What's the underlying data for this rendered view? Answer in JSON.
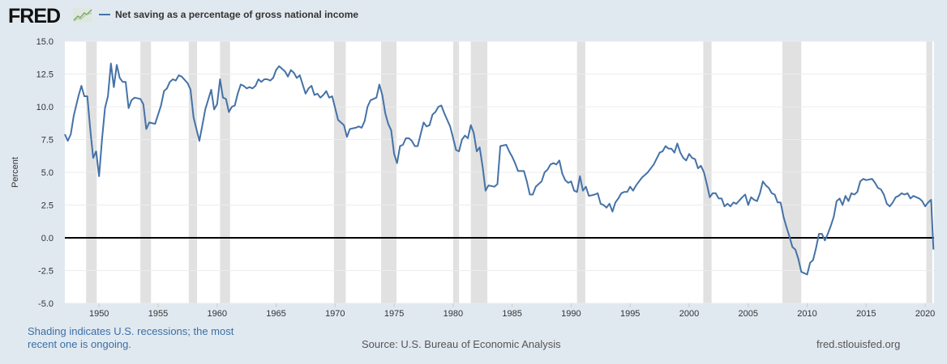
{
  "header": {
    "logo": "FRED",
    "legend_label": "Net saving as a percentage of gross national income"
  },
  "footer": {
    "note": "Shading indicates U.S. recessions; the most recent one is ongoing.",
    "source": "Source: U.S. Bureau of Economic Analysis",
    "site": "fred.stlouisfed.org"
  },
  "chart_data": {
    "type": "line",
    "title": "Net saving as a percentage of gross national income",
    "xlabel": "",
    "ylabel": "Percent",
    "ylim": [
      -5,
      15
    ],
    "xlim": [
      1947.1,
      2020.75
    ],
    "yticks": [
      "15.0",
      "12.5",
      "10.0",
      "7.5",
      "5.0",
      "2.5",
      "0.0",
      "-2.5",
      "-5.0"
    ],
    "ytick_values": [
      15,
      12.5,
      10,
      7.5,
      5,
      2.5,
      0,
      -2.5,
      -5
    ],
    "xticks": [
      "1950",
      "1955",
      "1960",
      "1965",
      "1970",
      "1975",
      "1980",
      "1985",
      "1990",
      "1995",
      "2000",
      "2005",
      "2010",
      "2015",
      "2020"
    ],
    "grid": true,
    "line_color": "#4572a7",
    "recessions": [
      [
        1948.9,
        1949.8
      ],
      [
        1953.5,
        1954.4
      ],
      [
        1957.6,
        1958.3
      ],
      [
        1960.25,
        1961.1
      ],
      [
        1969.9,
        1970.9
      ],
      [
        1973.9,
        1975.2
      ],
      [
        1980.0,
        1980.5
      ],
      [
        1981.5,
        1982.9
      ],
      [
        1990.5,
        1991.2
      ],
      [
        2001.2,
        2001.9
      ],
      [
        2007.9,
        2009.5
      ],
      [
        2020.1,
        2020.6
      ]
    ],
    "series": [
      {
        "name": "Net saving as a percentage of gross national income",
        "points": [
          [
            1947.1,
            7.9
          ],
          [
            1947.35,
            7.4
          ],
          [
            1947.6,
            7.9
          ],
          [
            1947.85,
            9.3
          ],
          [
            1948.25,
            10.8
          ],
          [
            1948.5,
            11.6
          ],
          [
            1948.75,
            10.8
          ],
          [
            1949.0,
            10.8
          ],
          [
            1949.25,
            8.3
          ],
          [
            1949.5,
            6.1
          ],
          [
            1949.75,
            6.6
          ],
          [
            1950.0,
            4.7
          ],
          [
            1950.25,
            7.5
          ],
          [
            1950.5,
            9.9
          ],
          [
            1950.75,
            10.8
          ],
          [
            1951.0,
            13.3
          ],
          [
            1951.25,
            11.5
          ],
          [
            1951.5,
            13.2
          ],
          [
            1951.75,
            12.2
          ],
          [
            1952.0,
            11.9
          ],
          [
            1952.25,
            11.9
          ],
          [
            1952.5,
            9.9
          ],
          [
            1952.75,
            10.5
          ],
          [
            1953.0,
            10.7
          ],
          [
            1953.5,
            10.6
          ],
          [
            1953.75,
            10.2
          ],
          [
            1954.0,
            8.3
          ],
          [
            1954.25,
            8.8
          ],
          [
            1954.75,
            8.7
          ],
          [
            1955.25,
            10.1
          ],
          [
            1955.5,
            11.2
          ],
          [
            1955.75,
            11.4
          ],
          [
            1956.0,
            11.9
          ],
          [
            1956.25,
            12.1
          ],
          [
            1956.5,
            12.0
          ],
          [
            1956.75,
            12.4
          ],
          [
            1957.0,
            12.3
          ],
          [
            1957.5,
            11.8
          ],
          [
            1957.75,
            11.3
          ],
          [
            1958.0,
            9.2
          ],
          [
            1958.5,
            7.4
          ],
          [
            1958.75,
            8.6
          ],
          [
            1959.0,
            9.8
          ],
          [
            1959.5,
            11.3
          ],
          [
            1959.75,
            9.8
          ],
          [
            1960.0,
            10.2
          ],
          [
            1960.25,
            12.1
          ],
          [
            1960.5,
            10.7
          ],
          [
            1960.75,
            10.6
          ],
          [
            1961.0,
            9.6
          ],
          [
            1961.25,
            10.0
          ],
          [
            1961.5,
            10.1
          ],
          [
            1961.75,
            11.0
          ],
          [
            1962.0,
            11.7
          ],
          [
            1962.25,
            11.6
          ],
          [
            1962.5,
            11.4
          ],
          [
            1962.75,
            11.5
          ],
          [
            1963.0,
            11.4
          ],
          [
            1963.25,
            11.6
          ],
          [
            1963.5,
            12.1
          ],
          [
            1963.75,
            11.9
          ],
          [
            1964.0,
            12.1
          ],
          [
            1964.25,
            12.1
          ],
          [
            1964.5,
            12.0
          ],
          [
            1964.75,
            12.2
          ],
          [
            1965.0,
            12.8
          ],
          [
            1965.25,
            13.1
          ],
          [
            1965.5,
            12.9
          ],
          [
            1965.75,
            12.7
          ],
          [
            1966.0,
            12.3
          ],
          [
            1966.25,
            12.8
          ],
          [
            1966.5,
            12.6
          ],
          [
            1966.75,
            12.2
          ],
          [
            1967.0,
            12.4
          ],
          [
            1967.5,
            11.0
          ],
          [
            1967.75,
            11.4
          ],
          [
            1968.0,
            11.6
          ],
          [
            1968.25,
            10.9
          ],
          [
            1968.5,
            11.0
          ],
          [
            1968.75,
            10.7
          ],
          [
            1969.0,
            10.9
          ],
          [
            1969.25,
            11.2
          ],
          [
            1969.5,
            10.7
          ],
          [
            1969.75,
            10.8
          ],
          [
            1970.25,
            9.0
          ],
          [
            1970.75,
            8.6
          ],
          [
            1971.0,
            7.7
          ],
          [
            1971.25,
            8.3
          ],
          [
            1971.75,
            8.4
          ],
          [
            1972.0,
            8.5
          ],
          [
            1972.25,
            8.4
          ],
          [
            1972.5,
            8.9
          ],
          [
            1972.75,
            10.0
          ],
          [
            1973.0,
            10.5
          ],
          [
            1973.5,
            10.7
          ],
          [
            1973.75,
            11.7
          ],
          [
            1974.0,
            10.9
          ],
          [
            1974.25,
            9.5
          ],
          [
            1974.5,
            8.7
          ],
          [
            1974.75,
            8.2
          ],
          [
            1975.0,
            6.4
          ],
          [
            1975.25,
            5.7
          ],
          [
            1975.5,
            7.0
          ],
          [
            1975.75,
            7.1
          ],
          [
            1976.0,
            7.6
          ],
          [
            1976.25,
            7.6
          ],
          [
            1976.5,
            7.4
          ],
          [
            1976.75,
            7.0
          ],
          [
            1977.0,
            7.0
          ],
          [
            1977.25,
            7.9
          ],
          [
            1977.5,
            8.8
          ],
          [
            1977.75,
            8.5
          ],
          [
            1978.0,
            8.6
          ],
          [
            1978.25,
            9.4
          ],
          [
            1978.5,
            9.6
          ],
          [
            1978.75,
            10.0
          ],
          [
            1979.0,
            10.1
          ],
          [
            1979.25,
            9.5
          ],
          [
            1979.75,
            8.5
          ],
          [
            1980.0,
            7.6
          ],
          [
            1980.25,
            6.7
          ],
          [
            1980.5,
            6.6
          ],
          [
            1980.75,
            7.5
          ],
          [
            1981.0,
            7.8
          ],
          [
            1981.25,
            7.6
          ],
          [
            1981.5,
            8.6
          ],
          [
            1981.75,
            8.0
          ],
          [
            1982.0,
            6.6
          ],
          [
            1982.25,
            6.9
          ],
          [
            1982.5,
            5.4
          ],
          [
            1982.75,
            3.6
          ],
          [
            1983.0,
            4.0
          ],
          [
            1983.5,
            3.9
          ],
          [
            1983.75,
            4.1
          ],
          [
            1984.0,
            7.0
          ],
          [
            1984.5,
            7.1
          ],
          [
            1984.75,
            6.6
          ],
          [
            1985.0,
            6.2
          ],
          [
            1985.25,
            5.7
          ],
          [
            1985.5,
            5.1
          ],
          [
            1985.75,
            5.1
          ],
          [
            1986.0,
            5.1
          ],
          [
            1986.25,
            4.3
          ],
          [
            1986.5,
            3.3
          ],
          [
            1986.75,
            3.3
          ],
          [
            1987.0,
            3.9
          ],
          [
            1987.5,
            4.3
          ],
          [
            1987.75,
            5.0
          ],
          [
            1988.0,
            5.2
          ],
          [
            1988.25,
            5.6
          ],
          [
            1988.5,
            5.7
          ],
          [
            1988.75,
            5.6
          ],
          [
            1989.0,
            5.9
          ],
          [
            1989.25,
            4.9
          ],
          [
            1989.5,
            4.4
          ],
          [
            1989.75,
            4.2
          ],
          [
            1990.0,
            4.3
          ],
          [
            1990.25,
            3.6
          ],
          [
            1990.5,
            3.5
          ],
          [
            1990.75,
            4.7
          ],
          [
            1991.0,
            3.6
          ],
          [
            1991.25,
            3.9
          ],
          [
            1991.5,
            3.2
          ],
          [
            1992.0,
            3.3
          ],
          [
            1992.25,
            3.4
          ],
          [
            1992.5,
            2.6
          ],
          [
            1992.75,
            2.5
          ],
          [
            1993.0,
            2.3
          ],
          [
            1993.25,
            2.6
          ],
          [
            1993.5,
            2.0
          ],
          [
            1993.75,
            2.7
          ],
          [
            1994.0,
            3.0
          ],
          [
            1994.25,
            3.4
          ],
          [
            1994.5,
            3.5
          ],
          [
            1994.75,
            3.5
          ],
          [
            1995.0,
            3.9
          ],
          [
            1995.25,
            3.6
          ],
          [
            1995.5,
            4.0
          ],
          [
            1996.0,
            4.6
          ],
          [
            1996.5,
            5.0
          ],
          [
            1997.0,
            5.6
          ],
          [
            1997.5,
            6.5
          ],
          [
            1997.75,
            6.6
          ],
          [
            1998.0,
            7.0
          ],
          [
            1998.25,
            6.8
          ],
          [
            1998.5,
            6.8
          ],
          [
            1998.75,
            6.5
          ],
          [
            1999.0,
            7.2
          ],
          [
            1999.25,
            6.5
          ],
          [
            1999.5,
            6.1
          ],
          [
            1999.75,
            5.9
          ],
          [
            2000.0,
            6.4
          ],
          [
            2000.25,
            6.1
          ],
          [
            2000.5,
            6.0
          ],
          [
            2000.75,
            5.3
          ],
          [
            2001.0,
            5.5
          ],
          [
            2001.25,
            5.0
          ],
          [
            2001.5,
            4.1
          ],
          [
            2001.75,
            3.1
          ],
          [
            2002.0,
            3.4
          ],
          [
            2002.25,
            3.4
          ],
          [
            2002.5,
            3.0
          ],
          [
            2002.75,
            3.0
          ],
          [
            2003.0,
            2.4
          ],
          [
            2003.25,
            2.6
          ],
          [
            2003.5,
            2.4
          ],
          [
            2003.75,
            2.7
          ],
          [
            2004.0,
            2.6
          ],
          [
            2004.5,
            3.1
          ],
          [
            2004.75,
            3.3
          ],
          [
            2005.0,
            2.5
          ],
          [
            2005.25,
            3.1
          ],
          [
            2005.5,
            2.9
          ],
          [
            2005.75,
            2.8
          ],
          [
            2006.0,
            3.4
          ],
          [
            2006.25,
            4.3
          ],
          [
            2006.5,
            4.0
          ],
          [
            2006.75,
            3.8
          ],
          [
            2007.0,
            3.4
          ],
          [
            2007.25,
            3.3
          ],
          [
            2007.5,
            2.7
          ],
          [
            2007.75,
            2.7
          ],
          [
            2008.0,
            1.6
          ],
          [
            2008.25,
            0.8
          ],
          [
            2008.5,
            0.1
          ],
          [
            2008.75,
            -0.7
          ],
          [
            2009.0,
            -0.9
          ],
          [
            2009.25,
            -1.6
          ],
          [
            2009.5,
            -2.6
          ],
          [
            2009.75,
            -2.7
          ],
          [
            2010.0,
            -2.8
          ],
          [
            2010.25,
            -1.9
          ],
          [
            2010.5,
            -1.7
          ],
          [
            2010.75,
            -0.8
          ],
          [
            2011.0,
            0.3
          ],
          [
            2011.25,
            0.3
          ],
          [
            2011.5,
            -0.2
          ],
          [
            2011.75,
            0.3
          ],
          [
            2012.0,
            0.9
          ],
          [
            2012.25,
            1.6
          ],
          [
            2012.5,
            2.8
          ],
          [
            2012.75,
            3.0
          ],
          [
            2013.0,
            2.5
          ],
          [
            2013.25,
            3.2
          ],
          [
            2013.5,
            2.8
          ],
          [
            2013.75,
            3.4
          ],
          [
            2014.0,
            3.3
          ],
          [
            2014.25,
            3.5
          ],
          [
            2014.5,
            4.3
          ],
          [
            2014.75,
            4.5
          ],
          [
            2015.0,
            4.4
          ],
          [
            2015.5,
            4.5
          ],
          [
            2015.75,
            4.2
          ],
          [
            2016.0,
            3.8
          ],
          [
            2016.25,
            3.7
          ],
          [
            2016.5,
            3.3
          ],
          [
            2016.75,
            2.6
          ],
          [
            2017.0,
            2.4
          ],
          [
            2017.25,
            2.7
          ],
          [
            2017.5,
            3.1
          ],
          [
            2017.75,
            3.2
          ],
          [
            2018.0,
            3.4
          ],
          [
            2018.25,
            3.3
          ],
          [
            2018.5,
            3.4
          ],
          [
            2018.75,
            3.0
          ],
          [
            2019.0,
            3.2
          ],
          [
            2019.25,
            3.1
          ],
          [
            2019.5,
            3.0
          ],
          [
            2019.75,
            2.8
          ],
          [
            2020.0,
            2.4
          ],
          [
            2020.25,
            2.7
          ],
          [
            2020.5,
            2.9
          ],
          [
            2020.7,
            -0.9
          ]
        ]
      }
    ]
  }
}
